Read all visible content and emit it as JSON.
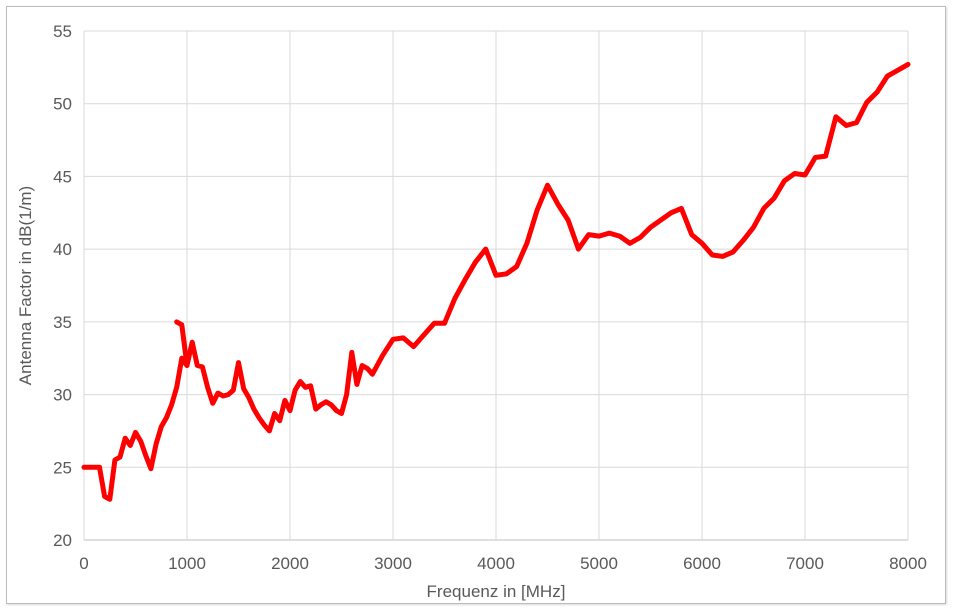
{
  "chart_data": {
    "type": "line",
    "title": "",
    "xlabel": "Frequenz in [MHz]",
    "ylabel": "Antenna Factor in dB(1/m)",
    "xlim": [
      0,
      8000
    ],
    "ylim": [
      20,
      55
    ],
    "x_ticks": [
      0,
      1000,
      2000,
      3000,
      4000,
      5000,
      6000,
      7000,
      8000
    ],
    "y_ticks": [
      20,
      25,
      30,
      35,
      40,
      45,
      50,
      55
    ],
    "grid": true,
    "legend": "none",
    "series": [
      {
        "color": "#ff0000",
        "points": [
          [
            0,
            25.0
          ],
          [
            150,
            25.0
          ],
          [
            200,
            23.0
          ],
          [
            250,
            22.8
          ],
          [
            300,
            25.5
          ],
          [
            350,
            25.7
          ],
          [
            400,
            27.0
          ],
          [
            450,
            26.5
          ],
          [
            500,
            27.4
          ],
          [
            550,
            26.8
          ],
          [
            600,
            25.8
          ],
          [
            650,
            24.9
          ],
          [
            700,
            26.6
          ],
          [
            750,
            27.8
          ],
          [
            800,
            28.4
          ],
          [
            850,
            29.3
          ],
          [
            900,
            30.5
          ],
          [
            950,
            32.5
          ],
          [
            1000,
            32.0
          ],
          [
            1050,
            33.6
          ],
          [
            1100,
            32.0
          ],
          [
            1150,
            31.9
          ],
          [
            1200,
            30.5
          ],
          [
            1250,
            29.4
          ],
          [
            1300,
            30.1
          ],
          [
            1350,
            29.9
          ],
          [
            1400,
            30.0
          ],
          [
            1450,
            30.3
          ],
          [
            1500,
            32.2
          ],
          [
            1550,
            30.4
          ],
          [
            1600,
            29.8
          ],
          [
            1650,
            29.0
          ],
          [
            1700,
            28.4
          ],
          [
            1750,
            27.9
          ],
          [
            1800,
            27.5
          ],
          [
            1850,
            28.7
          ],
          [
            1900,
            28.2
          ],
          [
            1950,
            29.6
          ],
          [
            2000,
            28.9
          ],
          [
            2050,
            30.3
          ],
          [
            2100,
            30.9
          ],
          [
            2150,
            30.5
          ],
          [
            2200,
            30.6
          ],
          [
            2250,
            29.0
          ],
          [
            2300,
            29.3
          ],
          [
            2350,
            29.5
          ],
          [
            2400,
            29.3
          ],
          [
            2450,
            28.9
          ],
          [
            2500,
            28.7
          ],
          [
            2550,
            30.0
          ],
          [
            2600,
            32.9
          ],
          [
            2650,
            30.7
          ],
          [
            2700,
            32.0
          ],
          [
            2750,
            31.8
          ],
          [
            2800,
            31.4
          ],
          [
            2900,
            32.7
          ],
          [
            3000,
            33.8
          ],
          [
            3100,
            33.9
          ],
          [
            3200,
            33.3
          ],
          [
            3300,
            34.1
          ],
          [
            3400,
            34.9
          ],
          [
            3500,
            34.9
          ],
          [
            3600,
            36.6
          ],
          [
            3700,
            37.9
          ],
          [
            3800,
            39.1
          ],
          [
            3900,
            40.0
          ],
          [
            4000,
            38.2
          ],
          [
            4100,
            38.3
          ],
          [
            4200,
            38.8
          ],
          [
            4300,
            40.4
          ],
          [
            4400,
            42.7
          ],
          [
            4500,
            44.4
          ],
          [
            4600,
            43.1
          ],
          [
            4700,
            42.0
          ],
          [
            4800,
            40.0
          ],
          [
            4900,
            41.0
          ],
          [
            5000,
            40.9
          ],
          [
            5100,
            41.1
          ],
          [
            5200,
            40.9
          ],
          [
            5300,
            40.4
          ],
          [
            5400,
            40.8
          ],
          [
            5500,
            41.5
          ],
          [
            5600,
            42.0
          ],
          [
            5700,
            42.5
          ],
          [
            5800,
            42.8
          ],
          [
            5900,
            41.0
          ],
          [
            6000,
            40.4
          ],
          [
            6100,
            39.6
          ],
          [
            6200,
            39.5
          ],
          [
            6300,
            39.8
          ],
          [
            6400,
            40.6
          ],
          [
            6500,
            41.5
          ],
          [
            6600,
            42.8
          ],
          [
            6700,
            43.5
          ],
          [
            6800,
            44.7
          ],
          [
            6900,
            45.2
          ],
          [
            7000,
            45.1
          ],
          [
            7100,
            46.3
          ],
          [
            7200,
            46.4
          ],
          [
            7300,
            49.1
          ],
          [
            7400,
            48.5
          ],
          [
            7500,
            48.7
          ],
          [
            7600,
            50.1
          ],
          [
            7700,
            50.8
          ],
          [
            7800,
            51.9
          ],
          [
            7900,
            52.3
          ],
          [
            8000,
            52.7
          ]
        ]
      },
      {
        "color": "#ff0000",
        "points": [
          [
            900,
            35.0
          ],
          [
            950,
            34.8
          ],
          [
            1000,
            32.0
          ]
        ]
      }
    ]
  }
}
